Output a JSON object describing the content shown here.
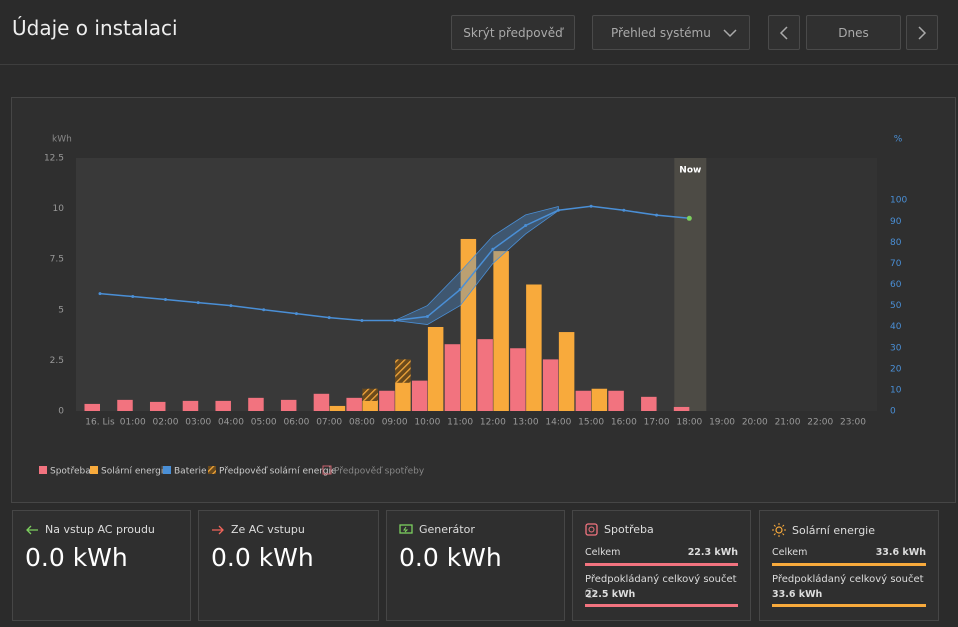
{
  "header": {
    "title": "Údaje o instalaci",
    "buttons": [
      "Skrýt předpověď",
      "Přehled systému",
      "Dnes"
    ]
  },
  "chart_data": {
    "type": "bar",
    "y_label": "kWh",
    "y2_label": "%",
    "categories": [
      "16. Lis",
      "01:00",
      "02:00",
      "03:00",
      "04:00",
      "05:00",
      "06:00",
      "07:00",
      "08:00",
      "09:00",
      "10:00",
      "11:00",
      "12:00",
      "13:00",
      "14:00",
      "15:00",
      "16:00",
      "17:00",
      "18:00",
      "19:00",
      "20:00",
      "21:00",
      "22:00",
      "23:00"
    ],
    "ylim": [
      0,
      12.5
    ],
    "yticks": [
      0,
      2.5,
      5,
      7.5,
      10,
      12.5
    ],
    "y2lim": [
      0,
      120
    ],
    "y2ticks": [
      0,
      10,
      20,
      30,
      40,
      50,
      60,
      70,
      80,
      90,
      100
    ],
    "now": "18:00",
    "now_label": "Now",
    "series": [
      {
        "name": "Spotřeba",
        "color": "#f2737f",
        "style": "solid",
        "values": [
          0.35,
          0.55,
          0.45,
          0.5,
          0.5,
          0.65,
          0.55,
          0.85,
          0.65,
          1.0,
          1.5,
          3.3,
          3.55,
          3.1,
          2.55,
          1.0,
          1.0,
          0.7,
          0.2,
          null,
          null,
          null,
          null,
          null
        ]
      },
      {
        "name": "Solární energie",
        "color": "#f8aa3c",
        "style": "solid",
        "values": [
          null,
          null,
          null,
          null,
          null,
          null,
          null,
          0.25,
          0.5,
          1.4,
          4.15,
          8.5,
          7.9,
          6.25,
          3.9,
          1.1,
          null,
          null,
          null,
          null,
          null,
          null,
          null,
          null
        ]
      },
      {
        "name": "Baterie",
        "color": "#4a8fd6",
        "style": "line",
        "axis": "y2",
        "values": [
          55.7,
          54.3,
          52.9,
          51.4,
          50,
          48,
          46.2,
          44.3,
          42.9,
          42.9,
          44.8,
          57.6,
          76.7,
          88,
          95.2,
          97.1,
          95.2,
          92.9,
          91.4,
          null,
          null,
          null,
          null,
          null
        ],
        "band_low": [
          null,
          null,
          null,
          null,
          null,
          null,
          null,
          null,
          null,
          42.9,
          41,
          50,
          70,
          84,
          95,
          null,
          null,
          null,
          null,
          null,
          null,
          null,
          null,
          null
        ],
        "band_high": [
          null,
          null,
          null,
          null,
          null,
          null,
          null,
          null,
          null,
          42.9,
          50,
          66,
          83,
          93,
          97,
          null,
          null,
          null,
          null,
          null,
          null,
          null,
          null,
          null
        ]
      },
      {
        "name": "Předpověď solární energie",
        "color": "#f8aa3c",
        "style": "hatch",
        "stack_on": 1,
        "values": [
          null,
          null,
          null,
          null,
          null,
          null,
          null,
          null,
          0.6,
          1.15,
          null,
          null,
          null,
          null,
          null,
          null,
          null,
          null,
          null,
          null,
          null,
          null,
          null,
          null
        ]
      },
      {
        "name": "Předpověď spotřeby",
        "color": "#c9626c",
        "style": "outline",
        "values": [
          null,
          null,
          null,
          null,
          null,
          null,
          null,
          null,
          null,
          null,
          null,
          null,
          null,
          null,
          null,
          null,
          null,
          null,
          null,
          null,
          null,
          null,
          null,
          null
        ]
      }
    ]
  },
  "cards": [
    {
      "title": "Na vstup AC proudu",
      "value": "0.0 kWh"
    },
    {
      "title": "Ze AC vstupu",
      "value": "0.0 kWh"
    },
    {
      "title": "Generátor",
      "value": "0.0 kWh"
    },
    {
      "title": "Spotřeba",
      "total_label": "Celkem",
      "total": "22.3 kWh",
      "forecast_label": "Předpokládaný celkový součet",
      "forecast": "22.5 kWh"
    },
    {
      "title": "Solární energie",
      "total_label": "Celkem",
      "total": "33.6 kWh",
      "forecast_label": "Předpokládaný celkový součet",
      "forecast": "33.6 kWh"
    }
  ]
}
